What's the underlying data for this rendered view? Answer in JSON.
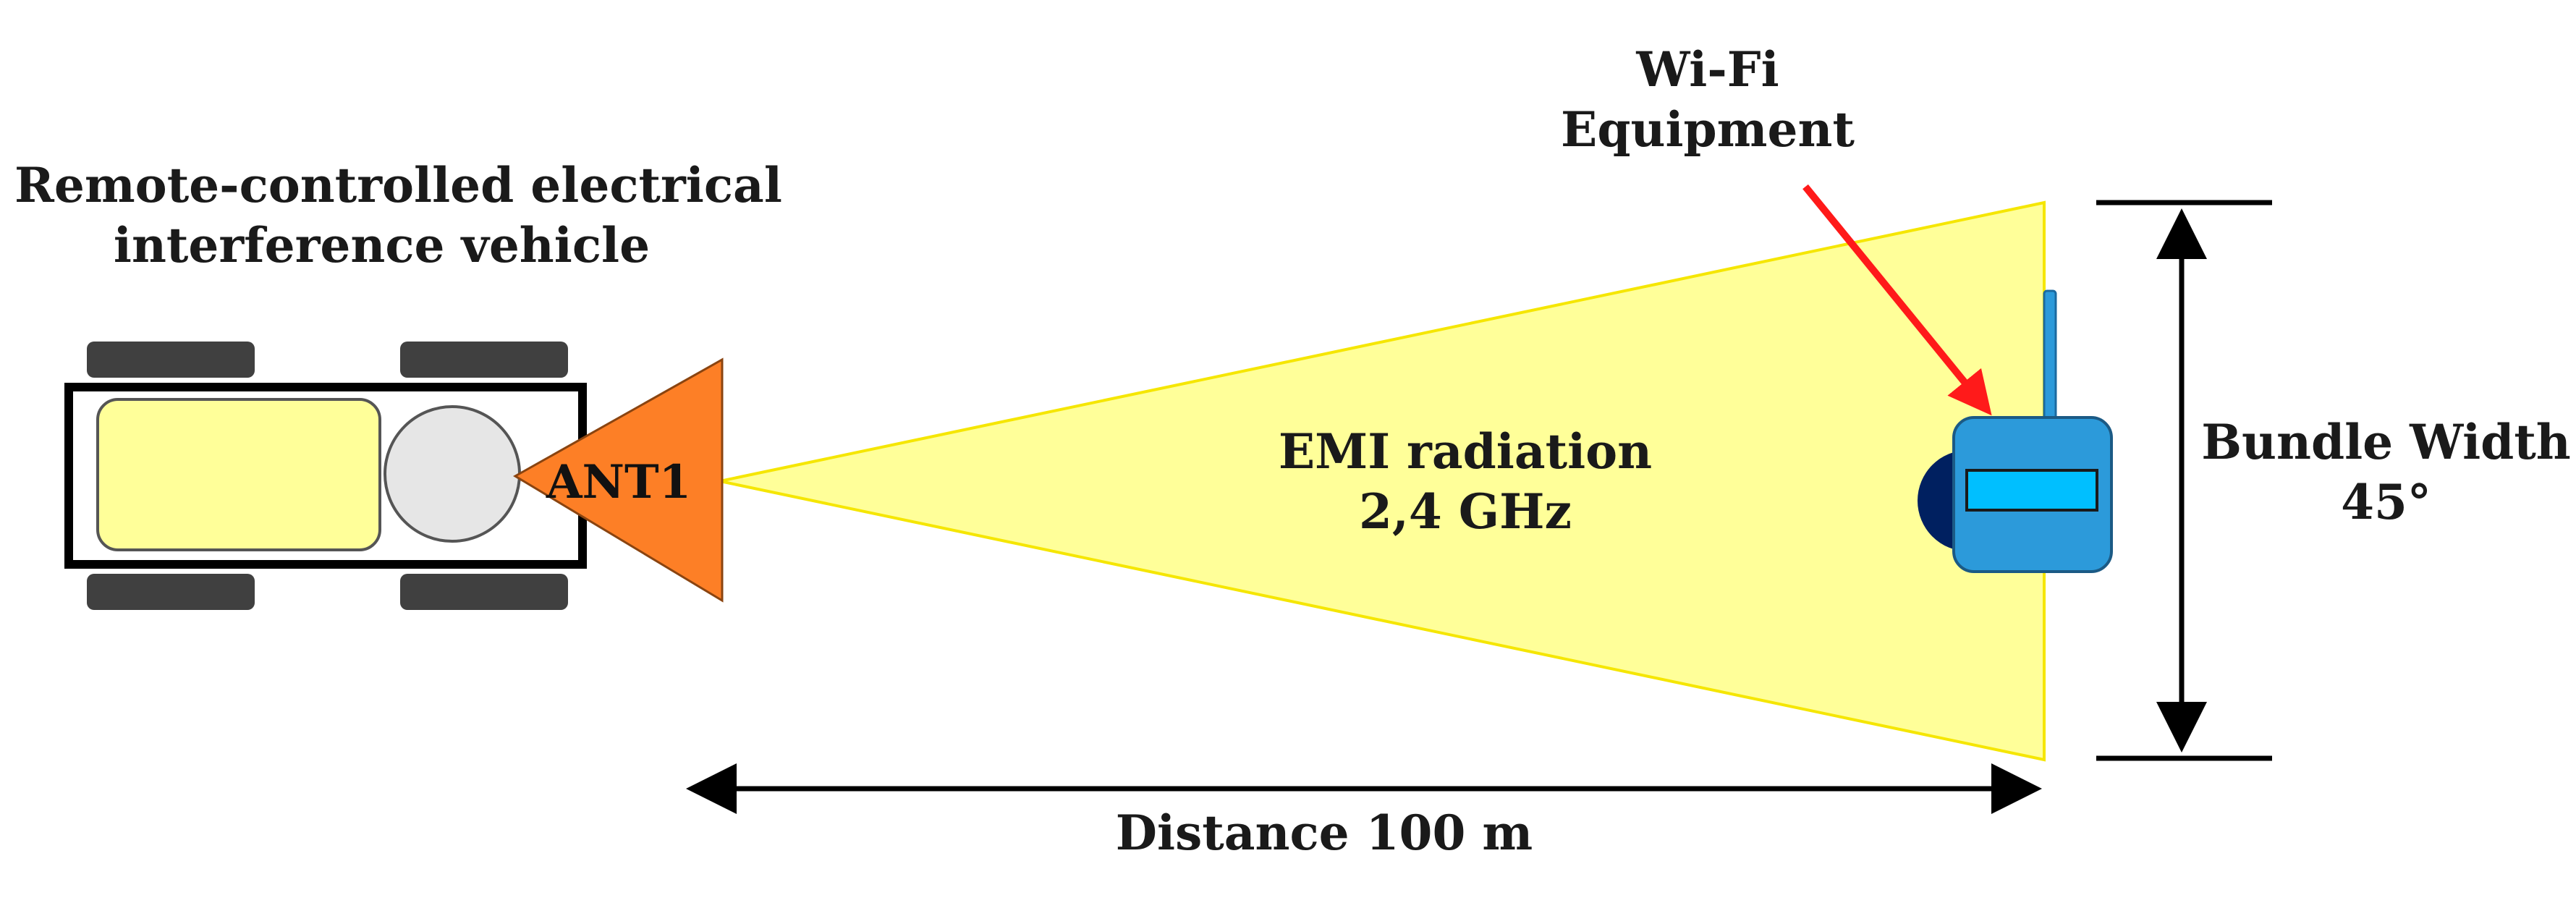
{
  "vehicle": {
    "title_line1": "Remote-controlled electrical",
    "title_line2": "interference vehicle",
    "antenna_label": "ANT1",
    "colors": {
      "body_fill": "#ffff99",
      "wheel_fill": "#404040",
      "motor_fill": "#e6e6e6",
      "antenna_fill": "#fd7f26"
    }
  },
  "beam": {
    "label_line1": "EMI radiation",
    "label_line2": "2,4 GHz",
    "color": "#ffff99"
  },
  "wifi": {
    "title_line1": "Wi-Fi",
    "title_line2": "Equipment",
    "colors": {
      "device_fill": "#2c9ada",
      "display_fill": "#00bfff",
      "back_fill": "#002060",
      "pointer_arrow": "#ff1a1a"
    },
    "icons": [
      "wifi-router-icon",
      "red-pointer-arrow-icon"
    ]
  },
  "dimensions": {
    "distance_label": "Distance 100 m",
    "width_label_line1": "Bundle Width",
    "width_label_line2": "45°"
  }
}
